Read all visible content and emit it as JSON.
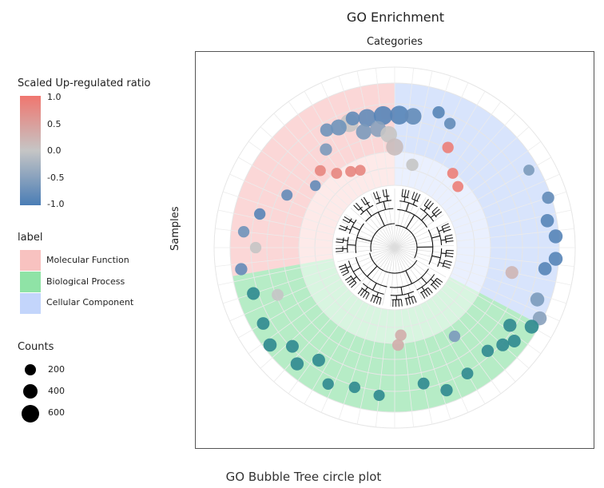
{
  "title": "GO Enrichment",
  "x_top_label": "Categories",
  "y_label": "Samples",
  "caption": "GO Bubble Tree circle plot",
  "legend": {
    "ratio": {
      "title": "Scaled Up-regulated ratio",
      "ticks": [
        "1.0",
        "0.5",
        "0.0",
        "-0.5",
        "-1.0"
      ],
      "colors": {
        "high": "#f0766f",
        "mid": "#c5c5c5",
        "low": "#4a7db5"
      }
    },
    "label": {
      "title": "label",
      "items": [
        {
          "name": "Molecular Function",
          "color": "#f8c2c0"
        },
        {
          "name": "Biological Process",
          "color": "#8fe3a6"
        },
        {
          "name": "Cellular Component",
          "color": "#c3d5fb"
        }
      ]
    },
    "counts": {
      "title": "Counts",
      "items": [
        {
          "value": "200"
        },
        {
          "value": "400"
        },
        {
          "value": "600"
        }
      ]
    }
  },
  "chart_data": {
    "type": "scatter",
    "layout": "circular",
    "title": "GO Enrichment",
    "color_scale": {
      "name": "Scaled Up-regulated ratio",
      "range": [
        -1,
        1
      ]
    },
    "size_legend": {
      "name": "Counts",
      "values": [
        200,
        400,
        600
      ]
    },
    "sectors": [
      {
        "name": "Molecular Function",
        "angle_start": -100,
        "angle_end": 0
      },
      {
        "name": "Cellular Component",
        "angle_start": 0,
        "angle_end": 118
      },
      {
        "name": "Biological Process",
        "angle_start": 118,
        "angle_end": 260
      }
    ],
    "bubbles": [
      {
        "angle": -20,
        "ring": 2,
        "value": 0.0,
        "count": 650
      },
      {
        "angle": -12,
        "ring": 2,
        "value": -0.8,
        "count": 600
      },
      {
        "angle": -5,
        "ring": 2,
        "value": -0.9,
        "count": 700
      },
      {
        "angle": 2,
        "ring": 2,
        "value": -0.9,
        "count": 700
      },
      {
        "angle": 8,
        "ring": 2,
        "value": -0.8,
        "count": 500
      },
      {
        "angle": -25,
        "ring": 2,
        "value": -0.7,
        "count": 450
      },
      {
        "angle": -15,
        "ring": 1.6,
        "value": -0.6,
        "count": 400
      },
      {
        "angle": -8,
        "ring": 1.6,
        "value": -0.5,
        "count": 450
      },
      {
        "angle": -3,
        "ring": 1.4,
        "value": 0.0,
        "count": 500
      },
      {
        "angle": 0,
        "ring": 1.0,
        "value": 0.1,
        "count": 550
      },
      {
        "angle": 12,
        "ring": 0.5,
        "value": 0.0,
        "count": 200
      },
      {
        "angle": -18,
        "ring": 2.1,
        "value": -0.8,
        "count": 300
      },
      {
        "angle": -30,
        "ring": 2.1,
        "value": -0.7,
        "count": 250
      },
      {
        "angle": -35,
        "ring": 1.6,
        "value": -0.6,
        "count": 200
      },
      {
        "angle": 18,
        "ring": 2.3,
        "value": -0.9,
        "count": 200
      },
      {
        "angle": 24,
        "ring": 2.1,
        "value": -0.8,
        "count": 160
      },
      {
        "angle": 28,
        "ring": 1.4,
        "value": 0.9,
        "count": 160
      },
      {
        "angle": 38,
        "ring": 0.8,
        "value": 0.9,
        "count": 140
      },
      {
        "angle": 46,
        "ring": 0.6,
        "value": 0.9,
        "count": 140
      },
      {
        "angle": 60,
        "ring": 2.7,
        "value": -0.6,
        "count": 140
      },
      {
        "angle": 72,
        "ring": 2.9,
        "value": -0.8,
        "count": 200
      },
      {
        "angle": 80,
        "ring": 2.7,
        "value": -0.9,
        "count": 260
      },
      {
        "angle": 86,
        "ring": 2.9,
        "value": -0.9,
        "count": 300
      },
      {
        "angle": 94,
        "ring": 2.9,
        "value": -0.9,
        "count": 300
      },
      {
        "angle": 98,
        "ring": 2.6,
        "value": -0.9,
        "count": 260
      },
      {
        "angle": 102,
        "ring": 1.6,
        "value": 0.2,
        "count": 240
      },
      {
        "angle": 110,
        "ring": 2.6,
        "value": -0.6,
        "count": 300
      },
      {
        "angle": 116,
        "ring": 2.9,
        "value": -0.5,
        "count": 300
      },
      {
        "angle": 120,
        "ring": 2.8,
        "value": -0.5,
        "count": 300
      },
      {
        "angle": 124,
        "ring": 2.2,
        "value": -0.6,
        "count": 250
      },
      {
        "angle": 128,
        "ring": 2.6,
        "value": -0.6,
        "count": 230
      },
      {
        "angle": 132,
        "ring": 2.4,
        "value": -0.6,
        "count": 230
      },
      {
        "angle": 138,
        "ring": 2.2,
        "value": -0.6,
        "count": 200
      },
      {
        "angle": 146,
        "ring": 1.2,
        "value": -0.6,
        "count": 160
      },
      {
        "angle": 150,
        "ring": 2.4,
        "value": -0.6,
        "count": 180
      },
      {
        "angle": 160,
        "ring": 2.6,
        "value": -0.6,
        "count": 200
      },
      {
        "angle": 168,
        "ring": 2.2,
        "value": -0.6,
        "count": 180
      },
      {
        "angle": 176,
        "ring": 0.6,
        "value": 0.3,
        "count": 160
      },
      {
        "angle": 178,
        "ring": 0.9,
        "value": 0.3,
        "count": 170
      },
      {
        "angle": 186,
        "ring": 2.5,
        "value": -0.7,
        "count": 150
      },
      {
        "angle": 196,
        "ring": 2.4,
        "value": -0.7,
        "count": 160
      },
      {
        "angle": 206,
        "ring": 2.6,
        "value": -0.8,
        "count": 160
      },
      {
        "angle": 214,
        "ring": 2.1,
        "value": -0.6,
        "count": 230
      },
      {
        "angle": 220,
        "ring": 2.6,
        "value": -0.7,
        "count": 250
      },
      {
        "angle": 226,
        "ring": 2.3,
        "value": -0.8,
        "count": 230
      },
      {
        "angle": 232,
        "ring": 2.8,
        "value": -0.8,
        "count": 260
      },
      {
        "angle": 240,
        "ring": 2.6,
        "value": -0.8,
        "count": 220
      },
      {
        "angle": 248,
        "ring": 1.8,
        "value": 0.0,
        "count": 180
      },
      {
        "angle": 252,
        "ring": 2.5,
        "value": -0.8,
        "count": 230
      },
      {
        "angle": 262,
        "ring": 2.7,
        "value": -0.8,
        "count": 200
      },
      {
        "angle": 270,
        "ring": 2.2,
        "value": 0.0,
        "count": 160
      },
      {
        "angle": 276,
        "ring": 2.6,
        "value": -0.7,
        "count": 160
      },
      {
        "angle": 284,
        "ring": 2.2,
        "value": -0.9,
        "count": 160
      },
      {
        "angle": 296,
        "ring": 1.6,
        "value": -0.8,
        "count": 150
      },
      {
        "angle": 308,
        "ring": 1.0,
        "value": -0.8,
        "count": 130
      },
      {
        "angle": 316,
        "ring": 1.2,
        "value": 0.8,
        "count": 140
      },
      {
        "angle": 322,
        "ring": 0.8,
        "value": 0.8,
        "count": 140
      },
      {
        "angle": 330,
        "ring": 0.6,
        "value": 0.8,
        "count": 140
      },
      {
        "angle": 336,
        "ring": 0.5,
        "value": 0.8,
        "count": 130
      }
    ]
  }
}
